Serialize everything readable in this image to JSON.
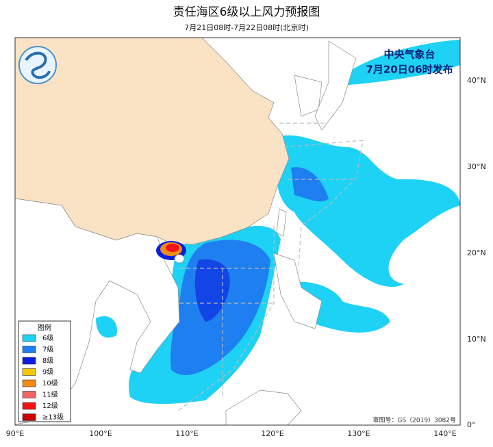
{
  "header": {
    "title": "责任海区6级以上风力预报图",
    "subtitle": "7月21日08时-7月22日08时(北京时)"
  },
  "issuer": {
    "agency": "中央气象台",
    "issued": "7月20日06时发布"
  },
  "axes": {
    "x_labels": [
      "90°E",
      "100°E",
      "110°E",
      "120°E",
      "130°E",
      "140°E"
    ],
    "y_labels": [
      "40°N",
      "30°N",
      "20°N",
      "10°N",
      "0°"
    ]
  },
  "legend": {
    "title": "图例",
    "items": [
      {
        "label": "6级",
        "color": "#1ed2f5"
      },
      {
        "label": "7级",
        "color": "#1e7ff0"
      },
      {
        "label": "8级",
        "color": "#0a1ee0"
      },
      {
        "label": "9级",
        "color": "#f5c800"
      },
      {
        "label": "10级",
        "color": "#f08c14"
      },
      {
        "label": "11级",
        "color": "#f06464"
      },
      {
        "label": "12级",
        "color": "#f01414"
      },
      {
        "label": "≥13级",
        "color": "#c80000"
      }
    ]
  },
  "approval": "审图号：GS（2019）3082号"
}
